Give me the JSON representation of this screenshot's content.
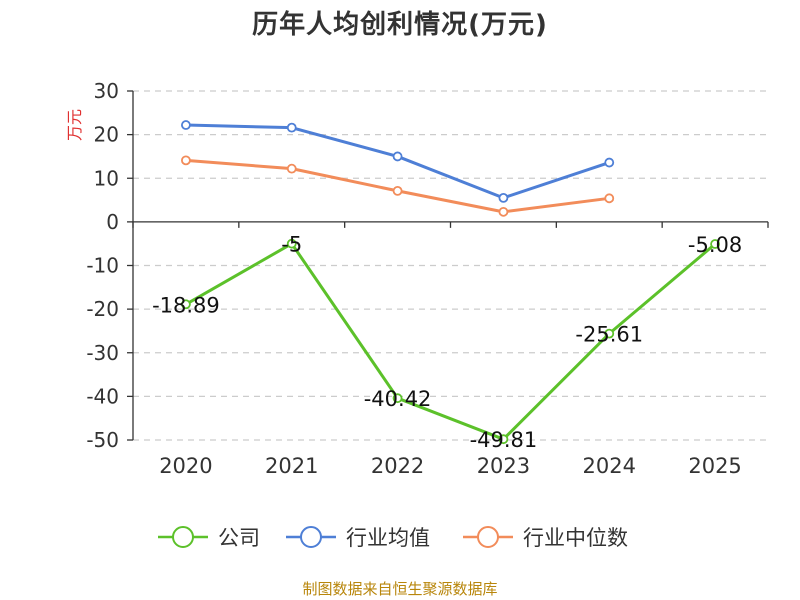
{
  "chart_data": {
    "type": "line",
    "title": "历年人均创利情况(万元)",
    "ylabel": "万元",
    "xlabel": "",
    "categories": [
      "2020",
      "2021",
      "2022",
      "2023",
      "2024",
      "2025"
    ],
    "ylim": [
      -50,
      30
    ],
    "yticks": [
      30,
      20,
      10,
      0,
      -10,
      -20,
      -30,
      -40,
      -50
    ],
    "grid": true,
    "legend_position": "bottom",
    "series": [
      {
        "name": "公司",
        "color": "#5cc12a",
        "values": [
          -18.89,
          -5,
          -40.42,
          -49.81,
          -25.61,
          -5.08
        ],
        "labels": [
          "-18.89",
          "-5",
          "-40.42",
          "-49.81",
          "-25.61",
          "-5.08"
        ]
      },
      {
        "name": "行业均值",
        "color": "#4e7fd6",
        "values": [
          22.2,
          21.6,
          15.0,
          5.5,
          13.6,
          null
        ]
      },
      {
        "name": "行业中位数",
        "color": "#f28c5a",
        "values": [
          14.1,
          12.2,
          7.1,
          2.3,
          5.4,
          null
        ]
      }
    ]
  },
  "source_text": "制图数据来自恒生聚源数据库",
  "colors": {
    "ylabel": "#e03030",
    "axis": "#333333",
    "grid": "#cccccc"
  }
}
